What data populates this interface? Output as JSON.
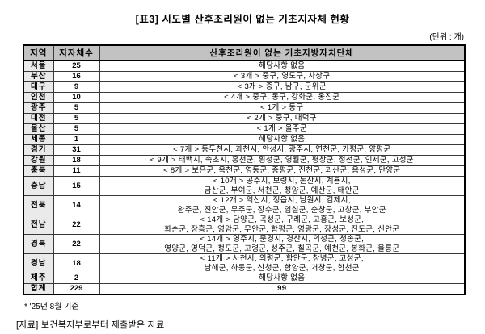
{
  "page": {
    "title": "[표3] 시도별 산후조리원이 없는 기초지자체 현황",
    "unit_note": "(단위 : 개)",
    "footnote": "* '25년 8월 기준",
    "source": "[자료] 보건복지부로부터 제출받은 자료"
  },
  "table": {
    "columns": [
      "지역",
      "지자체수",
      "산후조리원이 없는 기초지방자치단체"
    ],
    "rows": [
      {
        "region": "서울",
        "count": "25",
        "detail": "해당사항 없음"
      },
      {
        "region": "부산",
        "count": "16",
        "detail": "< 3개 > 중구, 영도구, 사상구"
      },
      {
        "region": "대구",
        "count": "9",
        "detail": "< 3개 > 중구, 남구, 군위군"
      },
      {
        "region": "인천",
        "count": "10",
        "detail": "< 4개 > 중구, 동구, 강화군, 옹진군"
      },
      {
        "region": "광주",
        "count": "5",
        "detail": "< 1개 > 동구"
      },
      {
        "region": "대전",
        "count": "5",
        "detail": "< 2개 > 중구, 대덕구"
      },
      {
        "region": "울산",
        "count": "5",
        "detail": "< 1개 > 울주군"
      },
      {
        "region": "세종",
        "count": "1",
        "detail": "해당사항 없음"
      },
      {
        "region": "경기",
        "count": "31",
        "detail": "< 7개 > 동두천시, 과천시, 안성시, 광주시, 연천군, 가평군, 양평군"
      },
      {
        "region": "강원",
        "count": "18",
        "detail": "< 9개 > 태백시, 속초시, 홍천군, 횡성군, 영월군, 평창군, 정선군, 인제군, 고성군"
      },
      {
        "region": "충북",
        "count": "11",
        "detail": "< 8개 > 보은군, 옥천군, 영동군, 증평군, 진천군, 괴산군, 음성군, 단양군"
      },
      {
        "region": "충남",
        "count": "15",
        "detail": "< 10개 > 공주시, 보령시, 논산시, 계룡시,\n금산군, 부여군, 서천군, 청양군, 예산군, 태안군"
      },
      {
        "region": "전북",
        "count": "14",
        "detail": "< 12개 > 익산시, 정읍시, 남원시, 김제시,\n완주군, 진안군, 무주군, 장수군, 임실군, 순창군, 고창군, 부안군"
      },
      {
        "region": "전남",
        "count": "22",
        "detail": "< 14개 > 담양군, 곡성군, 구례군, 고흥군, 보성군,\n화순군, 장흥군, 영암군, 무안군, 함평군, 영광군, 장성군, 진도군, 신안군"
      },
      {
        "region": "경북",
        "count": "22",
        "detail": "< 14개 > 영주시, 문경시, 경산시, 의성군, 청송군,\n영양군, 영덕군, 청도군, 고령군, 성주군, 칠곡군, 예천군, 봉화군, 울릉군"
      },
      {
        "region": "경남",
        "count": "18",
        "detail": "< 11개 > 사천시, 의령군, 함안군, 창녕군, 고성군,\n남해군, 하동군, 산청군, 함양군, 거창군, 합천군"
      },
      {
        "region": "제주",
        "count": "2",
        "detail": "해당사항 없음"
      },
      {
        "region": "합계",
        "count": "229",
        "detail": "99"
      }
    ]
  }
}
